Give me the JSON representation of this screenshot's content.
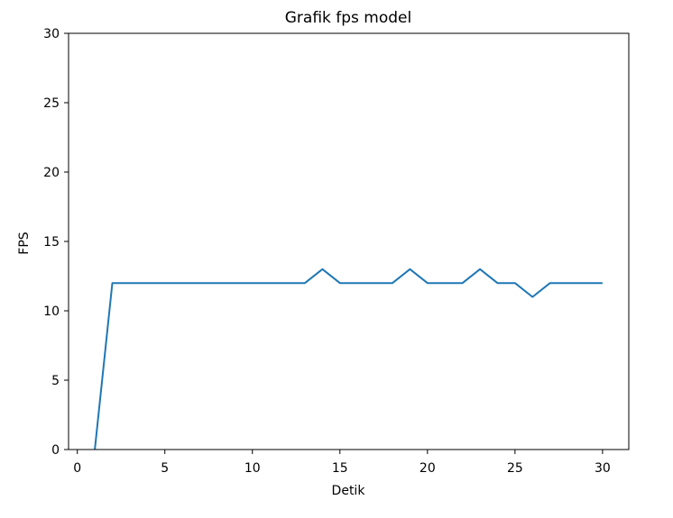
{
  "chart_data": {
    "type": "line",
    "title": "Grafik fps model",
    "xlabel": "Detik",
    "ylabel": "FPS",
    "xlim": [
      -0.5,
      31.5
    ],
    "ylim": [
      0,
      30
    ],
    "xticks": [
      0,
      5,
      10,
      15,
      20,
      25,
      30
    ],
    "yticks": [
      0,
      5,
      10,
      15,
      20,
      25,
      30
    ],
    "grid": false,
    "series": [
      {
        "color": "#1f77b4",
        "x": [
          1,
          2,
          3,
          4,
          5,
          6,
          7,
          8,
          9,
          10,
          11,
          12,
          13,
          14,
          15,
          16,
          17,
          18,
          19,
          20,
          21,
          22,
          23,
          24,
          25,
          26,
          27,
          28,
          29,
          30
        ],
        "values": [
          0,
          12,
          12,
          12,
          12,
          12,
          12,
          12,
          12,
          12,
          12,
          12,
          12,
          13,
          12,
          12,
          12,
          12,
          13,
          12,
          12,
          12,
          13,
          12,
          12,
          11,
          12,
          12,
          12,
          12
        ]
      }
    ]
  }
}
